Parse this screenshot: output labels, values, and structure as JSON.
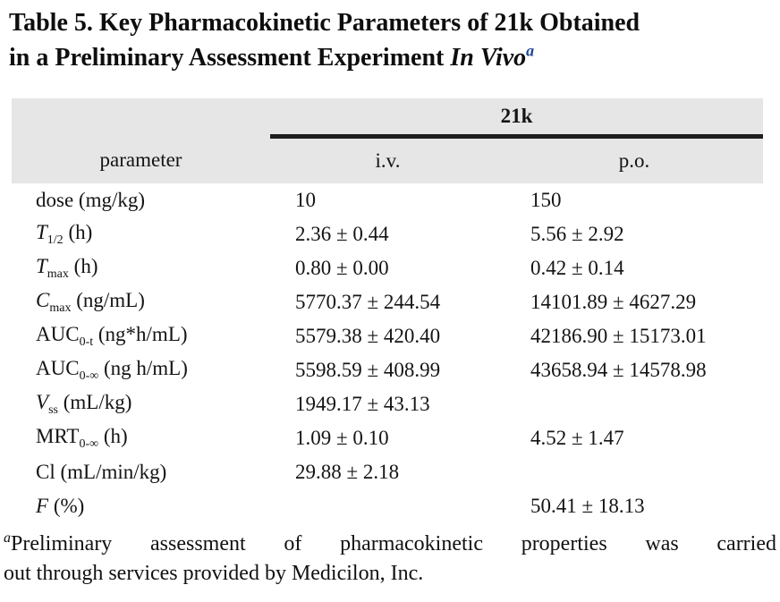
{
  "title": {
    "line1": "Table 5. Key Pharmacokinetic Parameters of 21k Obtained",
    "line2_prefix": "in a Preliminary Assessment Experiment ",
    "line2_italic": "In Vivo",
    "marker": "a"
  },
  "table": {
    "group_header": "21k",
    "columns": {
      "parameter": "parameter",
      "iv": "i.v.",
      "po": "p.o."
    },
    "rows": [
      {
        "param": {
          "base": "dose",
          "italic": false,
          "sub": "",
          "rest": " (mg/kg)"
        },
        "iv": "10",
        "po": "150"
      },
      {
        "param": {
          "base": "T",
          "italic": true,
          "sub": "1/2",
          "rest": " (h)"
        },
        "iv": "2.36 ± 0.44",
        "po": "5.56 ± 2.92"
      },
      {
        "param": {
          "base": "T",
          "italic": true,
          "sub": "max",
          "rest": " (h)"
        },
        "iv": "0.80 ± 0.00",
        "po": "0.42 ± 0.14"
      },
      {
        "param": {
          "base": "C",
          "italic": true,
          "sub": "max",
          "rest": " (ng/mL)"
        },
        "iv": "5770.37 ± 244.54",
        "po": "14101.89 ± 4627.29"
      },
      {
        "param": {
          "base": "AUC",
          "italic": false,
          "sub": "0-t",
          "rest": " (ng*h/mL)"
        },
        "iv": "5579.38 ± 420.40",
        "po": "42186.90 ± 15173.01"
      },
      {
        "param": {
          "base": "AUC",
          "italic": false,
          "sub": "0-∞",
          "rest": " (ng h/mL)"
        },
        "iv": "5598.59 ± 408.99",
        "po": "43658.94 ± 14578.98"
      },
      {
        "param": {
          "base": "V",
          "italic": true,
          "sub": "ss",
          "rest": " (mL/kg)"
        },
        "iv": "1949.17 ± 43.13",
        "po": ""
      },
      {
        "param": {
          "base": "MRT",
          "italic": false,
          "sub": "0-∞",
          "rest": " (h)"
        },
        "iv": "1.09 ± 0.10",
        "po": "4.52 ± 1.47"
      },
      {
        "param": {
          "base": "Cl",
          "italic": false,
          "sub": "",
          "rest": " (mL/min/kg)"
        },
        "iv": "29.88 ± 2.18",
        "po": ""
      },
      {
        "param": {
          "base": "F",
          "italic": true,
          "sub": "",
          "rest": " (%)"
        },
        "iv": "",
        "po": "50.41 ± 18.13"
      }
    ]
  },
  "footnote": {
    "marker": "a",
    "line1": "Preliminary assessment of pharmacokinetic properties was carried",
    "line2": "out through services provided by Medicilon, Inc."
  },
  "colors": {
    "header_band": "#e6e6e6",
    "group_rule": "#1e1e1e",
    "title_marker_blue": "#1f4698",
    "text": "#141414"
  }
}
